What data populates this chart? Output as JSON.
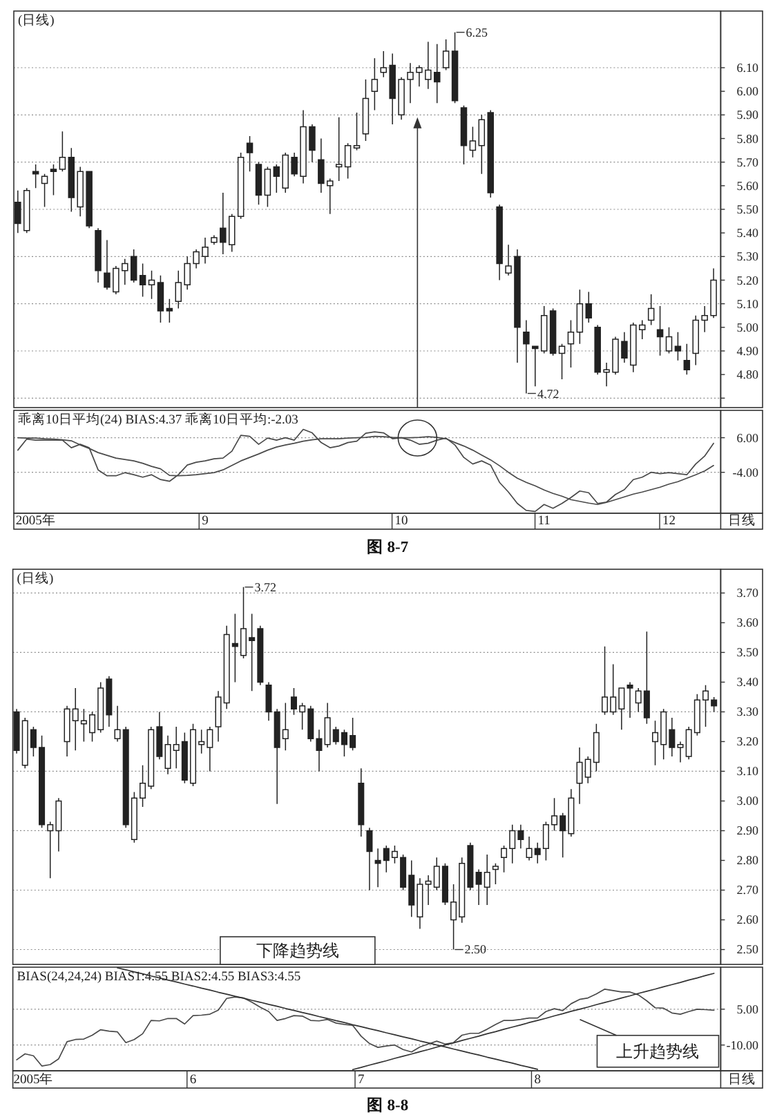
{
  "chart_data": [
    {
      "type": "candlestick",
      "title": "(日线)",
      "color": "#222222",
      "tick_labels": "y",
      "grid": "y",
      "ylim": [
        4.66,
        6.34
      ],
      "yticks": [
        {
          "value": 4.7,
          "label": null
        },
        {
          "value": 4.8,
          "label": "4.80"
        },
        {
          "value": 4.9,
          "label": "4.90"
        },
        {
          "value": 5.0,
          "label": "5.00"
        },
        {
          "value": 5.1,
          "label": "5.10"
        },
        {
          "value": 5.2,
          "label": "5.20"
        },
        {
          "value": 5.3,
          "label": "5.30"
        },
        {
          "value": 5.4,
          "label": "5.40"
        },
        {
          "value": 5.5,
          "label": "5.50"
        },
        {
          "value": 5.6,
          "label": "5.60"
        },
        {
          "value": 5.7,
          "label": "5.70"
        },
        {
          "value": 5.8,
          "label": "5.80"
        },
        {
          "value": 5.9,
          "label": "5.90"
        },
        {
          "value": 6.0,
          "label": "6.00"
        },
        {
          "value": 6.1,
          "label": "6.10"
        }
      ],
      "categories": [
        null,
        null,
        null,
        null,
        null,
        null,
        null,
        null,
        null,
        null,
        null,
        null,
        null,
        null,
        null,
        null,
        null,
        null,
        null,
        null,
        null,
        null,
        null,
        null,
        null,
        null,
        null,
        null,
        null,
        null,
        null,
        null,
        null,
        null,
        null,
        null,
        null,
        null,
        null,
        null,
        null,
        null,
        null,
        null,
        null,
        null,
        null,
        null,
        null,
        null,
        null,
        null,
        null,
        null,
        null,
        null,
        null,
        null,
        null,
        null,
        null,
        null,
        null,
        null,
        null,
        null,
        null,
        null,
        null,
        null,
        null,
        null,
        null,
        null,
        null,
        null,
        null,
        null,
        null
      ],
      "ohlc": [
        [
          5.53,
          5.58,
          5.4,
          5.44
        ],
        [
          5.41,
          5.59,
          5.4,
          5.58
        ],
        [
          5.66,
          5.69,
          5.59,
          5.65
        ],
        [
          5.61,
          5.65,
          5.51,
          5.64
        ],
        [
          5.67,
          5.69,
          5.56,
          5.66
        ],
        [
          5.67,
          5.83,
          5.66,
          5.72
        ],
        [
          5.72,
          5.76,
          5.49,
          5.55
        ],
        [
          5.51,
          5.68,
          5.47,
          5.66
        ],
        [
          5.66,
          5.66,
          5.42,
          5.43
        ],
        [
          5.41,
          5.42,
          5.19,
          5.24
        ],
        [
          5.23,
          5.37,
          5.16,
          5.17
        ],
        [
          5.15,
          5.26,
          5.14,
          5.25
        ],
        [
          5.24,
          5.29,
          5.18,
          5.27
        ],
        [
          5.3,
          5.33,
          5.19,
          5.2
        ],
        [
          5.22,
          5.27,
          5.13,
          5.18
        ],
        [
          5.18,
          5.24,
          5.12,
          5.2
        ],
        [
          5.19,
          5.22,
          5.02,
          5.07
        ],
        [
          5.08,
          5.12,
          5.02,
          5.07
        ],
        [
          5.11,
          5.24,
          5.08,
          5.19
        ],
        [
          5.18,
          5.3,
          5.16,
          5.27
        ],
        [
          5.27,
          5.33,
          5.25,
          5.32
        ],
        [
          5.3,
          5.38,
          5.27,
          5.34
        ],
        [
          5.36,
          5.39,
          5.35,
          5.38
        ],
        [
          5.42,
          5.57,
          5.31,
          5.36
        ],
        [
          5.35,
          5.48,
          5.32,
          5.47
        ],
        [
          5.47,
          5.74,
          5.46,
          5.72
        ],
        [
          5.78,
          5.81,
          5.66,
          5.74
        ],
        [
          5.69,
          5.7,
          5.52,
          5.56
        ],
        [
          5.56,
          5.68,
          5.51,
          5.67
        ],
        [
          5.68,
          5.69,
          5.57,
          5.64
        ],
        [
          5.59,
          5.74,
          5.57,
          5.73
        ],
        [
          5.72,
          5.74,
          5.64,
          5.65
        ],
        [
          5.64,
          5.92,
          5.61,
          5.85
        ],
        [
          5.85,
          5.86,
          5.7,
          5.75
        ],
        [
          5.71,
          5.8,
          5.57,
          5.61
        ],
        [
          5.6,
          5.63,
          5.48,
          5.62
        ],
        [
          5.68,
          5.89,
          5.62,
          5.69
        ],
        [
          5.68,
          5.78,
          5.63,
          5.77
        ],
        [
          5.76,
          5.91,
          5.75,
          5.77
        ],
        [
          5.82,
          6.05,
          5.79,
          5.97
        ],
        [
          6.0,
          6.14,
          5.92,
          6.05
        ],
        [
          6.08,
          6.17,
          6.06,
          6.1
        ],
        [
          6.11,
          6.16,
          5.86,
          5.97
        ],
        [
          5.9,
          6.06,
          5.88,
          6.05
        ],
        [
          6.05,
          6.12,
          5.95,
          6.08
        ],
        [
          6.08,
          6.11,
          6.02,
          6.1
        ],
        [
          6.05,
          6.21,
          6.01,
          6.09
        ],
        [
          6.08,
          6.2,
          5.95,
          6.04
        ],
        [
          6.1,
          6.22,
          6.09,
          6.17
        ],
        [
          6.17,
          6.25,
          5.95,
          5.96
        ],
        [
          5.93,
          5.94,
          5.69,
          5.77
        ],
        [
          5.75,
          5.85,
          5.72,
          5.79
        ],
        [
          5.77,
          5.9,
          5.65,
          5.88
        ],
        [
          5.91,
          5.92,
          5.55,
          5.57
        ],
        [
          5.51,
          5.52,
          5.2,
          5.27
        ],
        [
          5.23,
          5.35,
          5.22,
          5.26
        ],
        [
          5.3,
          5.33,
          4.85,
          5.0
        ],
        [
          4.98,
          5.03,
          4.72,
          4.93
        ],
        [
          4.92,
          4.92,
          4.75,
          4.91
        ],
        [
          4.9,
          5.09,
          4.89,
          5.05
        ],
        [
          5.07,
          5.08,
          4.88,
          4.89
        ],
        [
          4.89,
          4.93,
          4.78,
          4.92
        ],
        [
          4.93,
          5.03,
          4.83,
          4.98
        ],
        [
          4.98,
          5.16,
          4.93,
          5.1
        ],
        [
          5.1,
          5.15,
          5.02,
          5.04
        ],
        [
          5.0,
          5.01,
          4.8,
          4.81
        ],
        [
          4.81,
          4.85,
          4.75,
          4.82
        ],
        [
          4.81,
          4.96,
          4.8,
          4.95
        ],
        [
          4.94,
          4.98,
          4.85,
          4.87
        ],
        [
          4.84,
          5.02,
          4.81,
          5.01
        ],
        [
          4.99,
          5.03,
          4.95,
          5.01
        ],
        [
          5.03,
          5.14,
          5.01,
          5.08
        ],
        [
          4.99,
          5.09,
          4.88,
          4.96
        ],
        [
          4.9,
          5.0,
          4.89,
          4.96
        ],
        [
          4.92,
          4.98,
          4.86,
          4.9
        ],
        [
          4.86,
          4.93,
          4.8,
          4.82
        ],
        [
          4.89,
          5.05,
          4.84,
          5.03
        ],
        [
          5.03,
          5.09,
          4.98,
          5.05
        ],
        [
          5.05,
          5.25,
          5.04,
          5.2
        ]
      ],
      "annotations": [
        "6.25",
        "4.72"
      ]
    },
    {
      "type": "line",
      "title": "乖离10日平均(24) BIAS:4.37 乖离10日平均:-2.03",
      "xlabel": "日线",
      "grid": "y",
      "ylim": [
        -15.8,
        13.9
      ],
      "yticks": [
        {
          "value": 6,
          "label": "6.00"
        },
        {
          "value": -4,
          "label": "-4.00"
        }
      ],
      "categories": [
        null,
        null,
        "2005年",
        null,
        null,
        null,
        null,
        null,
        null,
        null,
        null,
        null,
        null,
        null,
        null,
        null,
        null,
        null,
        null,
        null,
        null,
        "9",
        null,
        null,
        null,
        null,
        null,
        null,
        null,
        null,
        null,
        null,
        null,
        null,
        null,
        null,
        null,
        null,
        null,
        null,
        null,
        null,
        null,
        "10",
        null,
        null,
        null,
        null,
        null,
        null,
        null,
        null,
        null,
        null,
        null,
        null,
        null,
        null,
        null,
        "11",
        null,
        null,
        null,
        null,
        null,
        null,
        null,
        null,
        null,
        null,
        null,
        null,
        null,
        "12",
        null,
        null,
        null,
        null,
        null
      ],
      "series": [
        {
          "color": "#4a4a4a",
          "values": [
            2.4,
            5.6,
            5.3,
            5.3,
            5.3,
            5.3,
            3.1,
            4.1,
            3.1,
            -3.3,
            -5.0,
            -5.0,
            -4.1,
            -4.7,
            -5.4,
            -4.7,
            -6.1,
            -6.6,
            -4.7,
            -1.9,
            -1.1,
            -0.7,
            -0.1,
            0.1,
            2.1,
            6.7,
            6.4,
            4.1,
            5.9,
            5.3,
            6.0,
            5.3,
            8.4,
            7.4,
            4.6,
            3.1,
            3.6,
            4.6,
            5.0,
            7.3,
            7.7,
            7.4,
            5.7,
            6.0,
            5.3,
            4.1,
            4.4,
            5.3,
            5.9,
            3.9,
            0.3,
            -1.6,
            -0.7,
            -1.9,
            -6.9,
            -9.7,
            -13.0,
            -15.0,
            -15.3,
            -13.3,
            -14.4,
            -13.0,
            -11.3,
            -9.4,
            -9.9,
            -13.0,
            -12.6,
            -10.4,
            -9.0,
            -6.1,
            -5.4,
            -4.0,
            -4.4,
            -4.1,
            -4.4,
            -4.7,
            -1.6,
            0.7,
            4.37
          ]
        },
        {
          "color": "#4a4a4a",
          "values": [
            6.0,
            5.9,
            5.9,
            5.7,
            5.6,
            5.4,
            5.1,
            3.9,
            2.9,
            1.7,
            0.9,
            0.1,
            -0.3,
            -0.7,
            -1.4,
            -2.3,
            -3.0,
            -4.9,
            -5.0,
            -4.9,
            -4.7,
            -4.4,
            -4.1,
            -3.3,
            -2.0,
            -0.7,
            0.3,
            1.3,
            2.4,
            3.3,
            3.9,
            4.4,
            5.0,
            5.4,
            5.7,
            5.7,
            5.7,
            5.9,
            6.0,
            6.1,
            6.4,
            6.3,
            6.1,
            6.0,
            6.0,
            6.1,
            6.3,
            6.1,
            5.7,
            4.6,
            3.6,
            2.4,
            1.0,
            -0.4,
            -2.1,
            -4.0,
            -5.7,
            -6.9,
            -7.9,
            -9.1,
            -10.1,
            -10.9,
            -11.9,
            -12.4,
            -12.9,
            -13.3,
            -12.7,
            -11.9,
            -11.1,
            -10.3,
            -9.7,
            -9.0,
            -8.3,
            -7.4,
            -6.7,
            -5.7,
            -4.7,
            -3.6,
            -2.03
          ]
        }
      ],
      "annotations": [
        "图 8-7"
      ]
    },
    {
      "type": "candlestick",
      "title": "(日线)",
      "color": "#222222",
      "tick_labels": "y",
      "grid": "y",
      "ylim": [
        2.45,
        3.78
      ],
      "yticks": [
        {
          "value": 2.5,
          "label": "2.50"
        },
        {
          "value": 2.6,
          "label": "2.60"
        },
        {
          "value": 2.7,
          "label": "2.70"
        },
        {
          "value": 2.8,
          "label": "2.80"
        },
        {
          "value": 2.9,
          "label": "2.90"
        },
        {
          "value": 3.0,
          "label": "3.00"
        },
        {
          "value": 3.1,
          "label": "3.10"
        },
        {
          "value": 3.2,
          "label": "3.20"
        },
        {
          "value": 3.3,
          "label": "3.30"
        },
        {
          "value": 3.4,
          "label": "3.40"
        },
        {
          "value": 3.5,
          "label": "3.50"
        },
        {
          "value": 3.6,
          "label": "3.60"
        },
        {
          "value": 3.7,
          "label": "3.70"
        }
      ],
      "categories": [
        null,
        null,
        null,
        null,
        null,
        null,
        null,
        null,
        null,
        null,
        null,
        null,
        null,
        null,
        null,
        null,
        null,
        null,
        null,
        null,
        null,
        null,
        null,
        null,
        null,
        null,
        null,
        null,
        null,
        null,
        null,
        null,
        null,
        null,
        null,
        null,
        null,
        null,
        null,
        null,
        null,
        null,
        null,
        null,
        null,
        null,
        null,
        null,
        null,
        null,
        null,
        null,
        null,
        null,
        null,
        null,
        null,
        null,
        null,
        null,
        null,
        null,
        null,
        null,
        null,
        null,
        null,
        null,
        null,
        null,
        null,
        null,
        null,
        null,
        null,
        null,
        null,
        null,
        null,
        null,
        null,
        null,
        null,
        null
      ],
      "ohlc": [
        [
          3.3,
          3.31,
          3.16,
          3.17
        ],
        [
          3.12,
          3.28,
          3.11,
          3.27
        ],
        [
          3.24,
          3.25,
          3.15,
          3.18
        ],
        [
          3.18,
          3.22,
          2.91,
          2.92
        ],
        [
          2.9,
          2.93,
          2.74,
          2.92
        ],
        [
          2.9,
          3.01,
          2.83,
          3.0
        ],
        [
          3.2,
          3.32,
          3.15,
          3.31
        ],
        [
          3.27,
          3.38,
          3.17,
          3.31
        ],
        [
          3.26,
          3.31,
          3.2,
          3.27
        ],
        [
          3.23,
          3.3,
          3.2,
          3.29
        ],
        [
          3.24,
          3.4,
          3.23,
          3.38
        ],
        [
          3.41,
          3.42,
          3.25,
          3.29
        ],
        [
          3.21,
          3.32,
          3.2,
          3.24
        ],
        [
          3.24,
          3.25,
          2.91,
          2.92
        ],
        [
          2.87,
          3.03,
          2.86,
          3.01
        ],
        [
          3.01,
          3.12,
          2.98,
          3.06
        ],
        [
          3.05,
          3.25,
          3.04,
          3.24
        ],
        [
          3.25,
          3.3,
          3.14,
          3.15
        ],
        [
          3.11,
          3.22,
          3.09,
          3.19
        ],
        [
          3.17,
          3.25,
          3.11,
          3.19
        ],
        [
          3.2,
          3.23,
          3.06,
          3.07
        ],
        [
          3.06,
          3.26,
          3.05,
          3.24
        ],
        [
          3.19,
          3.24,
          3.16,
          3.2
        ],
        [
          3.18,
          3.25,
          3.1,
          3.24
        ],
        [
          3.25,
          3.37,
          3.2,
          3.35
        ],
        [
          3.33,
          3.59,
          3.31,
          3.56
        ],
        [
          3.53,
          3.63,
          3.4,
          3.52
        ],
        [
          3.49,
          3.72,
          3.48,
          3.58
        ],
        [
          3.55,
          3.63,
          3.37,
          3.54
        ],
        [
          3.58,
          3.59,
          3.39,
          3.4
        ],
        [
          3.39,
          3.4,
          3.27,
          3.3
        ],
        [
          3.3,
          3.31,
          2.99,
          3.18
        ],
        [
          3.21,
          3.33,
          3.17,
          3.24
        ],
        [
          3.35,
          3.38,
          3.29,
          3.31
        ],
        [
          3.3,
          3.33,
          3.24,
          3.32
        ],
        [
          3.31,
          3.32,
          3.2,
          3.21
        ],
        [
          3.21,
          3.24,
          3.1,
          3.17
        ],
        [
          3.19,
          3.33,
          3.18,
          3.28
        ],
        [
          3.24,
          3.25,
          3.19,
          3.2
        ],
        [
          3.23,
          3.24,
          3.15,
          3.19
        ],
        [
          3.22,
          3.28,
          3.17,
          3.18
        ],
        [
          3.06,
          3.11,
          2.88,
          2.92
        ],
        [
          2.9,
          2.91,
          2.7,
          2.83
        ],
        [
          2.8,
          2.84,
          2.71,
          2.79
        ],
        [
          2.84,
          2.85,
          2.76,
          2.8
        ],
        [
          2.81,
          2.85,
          2.79,
          2.83
        ],
        [
          2.81,
          2.82,
          2.7,
          2.71
        ],
        [
          2.75,
          2.8,
          2.61,
          2.65
        ],
        [
          2.61,
          2.74,
          2.57,
          2.72
        ],
        [
          2.72,
          2.75,
          2.65,
          2.73
        ],
        [
          2.71,
          2.81,
          2.7,
          2.78
        ],
        [
          2.78,
          2.79,
          2.65,
          2.66
        ],
        [
          2.6,
          2.72,
          2.5,
          2.66
        ],
        [
          2.61,
          2.81,
          2.59,
          2.79
        ],
        [
          2.85,
          2.86,
          2.7,
          2.71
        ],
        [
          2.76,
          2.77,
          2.65,
          2.72
        ],
        [
          2.71,
          2.82,
          2.65,
          2.76
        ],
        [
          2.77,
          2.79,
          2.72,
          2.78
        ],
        [
          2.81,
          2.85,
          2.76,
          2.84
        ],
        [
          2.84,
          2.92,
          2.79,
          2.9
        ],
        [
          2.9,
          2.92,
          2.84,
          2.87
        ],
        [
          2.81,
          2.88,
          2.8,
          2.84
        ],
        [
          2.84,
          2.86,
          2.79,
          2.82
        ],
        [
          2.84,
          2.93,
          2.8,
          2.92
        ],
        [
          2.92,
          3.01,
          2.9,
          2.95
        ],
        [
          2.95,
          2.96,
          2.81,
          2.9
        ],
        [
          2.89,
          3.04,
          2.88,
          3.01
        ],
        [
          3.06,
          3.18,
          2.99,
          3.13
        ],
        [
          3.08,
          3.15,
          3.06,
          3.14
        ],
        [
          3.13,
          3.26,
          3.1,
          3.23
        ],
        [
          3.3,
          3.52,
          3.29,
          3.35
        ],
        [
          3.3,
          3.46,
          3.29,
          3.35
        ],
        [
          3.31,
          3.38,
          3.24,
          3.38
        ],
        [
          3.39,
          3.4,
          3.28,
          3.38
        ],
        [
          3.33,
          3.38,
          3.3,
          3.37
        ],
        [
          3.37,
          3.57,
          3.26,
          3.28
        ],
        [
          3.2,
          3.27,
          3.12,
          3.23
        ],
        [
          3.19,
          3.31,
          3.14,
          3.3
        ],
        [
          3.24,
          3.28,
          3.15,
          3.18
        ],
        [
          3.18,
          3.2,
          3.13,
          3.19
        ],
        [
          3.15,
          3.25,
          3.14,
          3.24
        ],
        [
          3.23,
          3.36,
          3.22,
          3.34
        ],
        [
          3.34,
          3.39,
          3.25,
          3.37
        ],
        [
          3.34,
          3.35,
          3.3,
          3.32
        ]
      ],
      "annotations": [
        "3.72",
        "2.50",
        "下降趋势线"
      ]
    },
    {
      "type": "line",
      "title": "BIAS(24,24,24) BIAS1:4.55 BIAS2:4.55 BIAS3:4.55",
      "xlabel": "日线",
      "grid": "y",
      "ylim": [
        -20.8,
        22.6
      ],
      "yticks": [
        {
          "value": 5,
          "label": "5.00"
        },
        {
          "value": -10,
          "label": "-10.00"
        }
      ],
      "categories": [
        null,
        null,
        "2005年",
        null,
        null,
        null,
        null,
        null,
        null,
        null,
        null,
        null,
        null,
        null,
        null,
        null,
        null,
        null,
        null,
        null,
        null,
        "6",
        null,
        null,
        null,
        null,
        null,
        null,
        null,
        null,
        null,
        null,
        null,
        null,
        null,
        null,
        null,
        null,
        null,
        null,
        null,
        "7",
        null,
        null,
        null,
        null,
        null,
        null,
        null,
        null,
        null,
        null,
        null,
        null,
        null,
        null,
        null,
        null,
        null,
        null,
        null,
        null,
        "8",
        null,
        null,
        null,
        null,
        null,
        null,
        null,
        null,
        null,
        null,
        null,
        null,
        null,
        null,
        null,
        null,
        null,
        null,
        null,
        null,
        null
      ],
      "series": [
        {
          "color": "#4a4a4a",
          "values": [
            -16.2,
            -13.7,
            -14.5,
            -18.8,
            -18.2,
            -15.8,
            -8.6,
            -7.7,
            -7.5,
            -5.9,
            -3.6,
            -4.2,
            -4.5,
            -9.0,
            -7.7,
            -5.3,
            0.3,
            0.1,
            1.1,
            1.1,
            -1.2,
            2.3,
            2.5,
            2.9,
            4.6,
            9.5,
            10.1,
            9.7,
            7.9,
            5.8,
            4.0,
            0.3,
            1.1,
            2.3,
            2.1,
            0.3,
            0.1,
            0.7,
            -0.8,
            -1.4,
            -1.8,
            -6.3,
            -9.4,
            -11.0,
            -10.4,
            -10.0,
            -11.9,
            -12.9,
            -10.8,
            -9.6,
            -8.4,
            -9.6,
            -9.0,
            -5.9,
            -5.1,
            -5.1,
            -3.4,
            -1.4,
            0.3,
            0.3,
            0.7,
            1.3,
            1.3,
            4.0,
            5.2,
            4.4,
            7.3,
            9.1,
            9.7,
            11.4,
            13.4,
            12.8,
            12.2,
            12.2,
            11.0,
            8.5,
            5.6,
            5.4,
            3.4,
            2.9,
            4.0,
            5.0,
            4.8,
            4.55
          ]
        },
        {
          "color": "#333333",
          "values": [
            null,
            null,
            null,
            null,
            null,
            null,
            null,
            null,
            null,
            null,
            null,
            null,
            22.3,
            21.5,
            20.6,
            19.8,
            18.9,
            18.1,
            17.2,
            16.4,
            15.5,
            14.7,
            13.8,
            13.0,
            12.1,
            11.3,
            10.4,
            9.6,
            8.7,
            7.9,
            7.0,
            6.2,
            5.3,
            4.5,
            3.6,
            2.8,
            1.9,
            1.1,
            0.2,
            -0.6,
            -1.5,
            -2.3,
            -3.2,
            -4.0,
            -4.9,
            -5.7,
            -6.6,
            -7.4,
            -8.3,
            -9.1,
            -10.0,
            -10.8,
            -11.7,
            -12.5,
            -13.4,
            -14.2,
            -15.1,
            -15.9,
            -16.8,
            -17.6,
            -18.5,
            -19.3,
            -20.2,
            null,
            null,
            null,
            null,
            null,
            null,
            null,
            null,
            null,
            null,
            null,
            null,
            null,
            null,
            null,
            null,
            null,
            null,
            null,
            null,
            null
          ]
        },
        {
          "color": "#333333",
          "values": [
            null,
            null,
            null,
            null,
            null,
            null,
            null,
            null,
            null,
            null,
            null,
            null,
            null,
            null,
            null,
            null,
            null,
            null,
            null,
            null,
            null,
            null,
            null,
            null,
            null,
            null,
            null,
            null,
            null,
            null,
            null,
            null,
            null,
            null,
            null,
            null,
            null,
            null,
            null,
            null,
            -20.3,
            -19.4,
            -18.4,
            -17.5,
            -16.6,
            -15.6,
            -14.7,
            -13.8,
            -12.8,
            -11.9,
            -10.9,
            -10.0,
            -9.1,
            -8.1,
            -7.2,
            -6.3,
            -5.3,
            -4.4,
            -3.4,
            -2.5,
            -1.6,
            -0.6,
            0.3,
            1.2,
            2.2,
            3.1,
            4.1,
            5.0,
            5.9,
            6.9,
            7.8,
            8.7,
            9.7,
            10.6,
            11.6,
            12.5,
            13.4,
            14.4,
            15.3,
            16.2,
            17.2,
            18.1,
            19.1,
            20.0
          ]
        }
      ],
      "annotations": [
        "上升趋势线",
        "图 8-8"
      ]
    }
  ]
}
